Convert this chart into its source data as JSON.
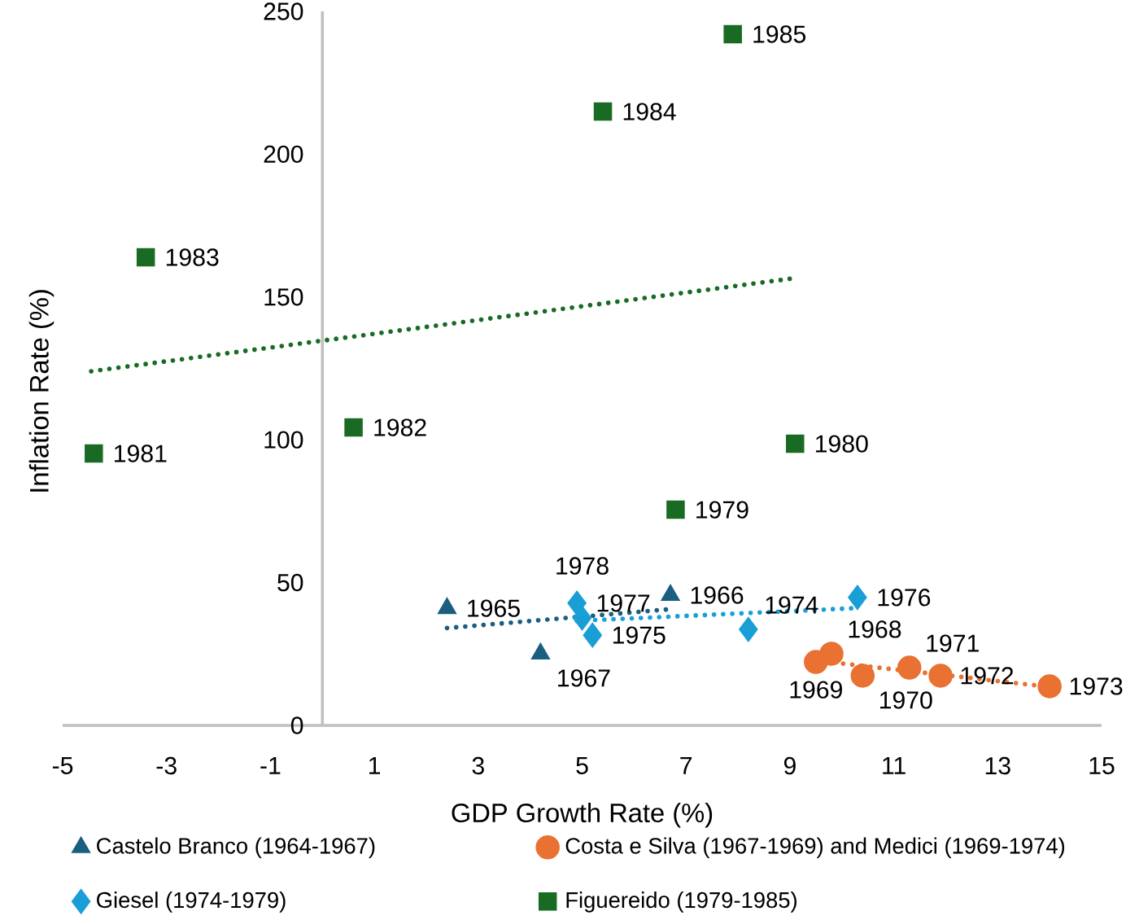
{
  "chart_data": {
    "type": "scatter",
    "xlabel": "GDP Growth Rate (%)",
    "ylabel": "Inflation Rate (%)",
    "xlim": [
      -5,
      15
    ],
    "ylim": [
      0,
      250
    ],
    "xticks": [
      -5,
      -3,
      -1,
      1,
      3,
      5,
      7,
      9,
      11,
      13,
      15
    ],
    "yticks": [
      0,
      50,
      100,
      150,
      200,
      250
    ],
    "legend": "bottom",
    "series": [
      {
        "name": "Castelo Branco (1964-1967)",
        "color": "#1a5e80",
        "marker": "triangle",
        "x": [
          2.4,
          6.7,
          4.2
        ],
        "values": [
          41,
          45.6,
          25.1
        ]
      },
      {
        "name": "Costa e Silva (1967-1969) and Medici (1969-1974)",
        "color": "#e97132",
        "marker": "circle",
        "x": [
          9.8,
          9.5,
          10.4,
          11.3,
          11.9,
          14.0
        ],
        "values": [
          25.1,
          22.2,
          17.4,
          20.2,
          17.4,
          13.7
        ]
      },
      {
        "name": "Giesel (1974-1979)",
        "color": "#199fd6",
        "marker": "diamond",
        "x": [
          8.2,
          5.2,
          10.3,
          4.9,
          5.0
        ],
        "values": [
          33.6,
          31.6,
          44.8,
          42.8,
          37.6
        ]
      },
      {
        "name": "Figuereido (1979-1985)",
        "color": "#196b24",
        "marker": "square",
        "x": [
          6.8,
          9.1,
          -4.4,
          0.6,
          -3.4,
          5.4,
          7.9
        ],
        "values": [
          75.5,
          98.6,
          95.2,
          104.3,
          163.9,
          214.9,
          242
        ]
      },
      {
        "type": "line",
        "color": "#1a5e80",
        "line_style": "dotted",
        "x": [
          2.4,
          6.7
        ],
        "values": [
          34.1,
          40.7
        ]
      },
      {
        "type": "line",
        "color": "#e97132",
        "line_style": "dotted",
        "x": [
          9.5,
          14.0
        ],
        "values": [
          22.7,
          13.5
        ]
      },
      {
        "type": "line",
        "color": "#199fd6",
        "line_style": "dotted",
        "x": [
          4.9,
          10.3
        ],
        "values": [
          36.6,
          41.1
        ]
      },
      {
        "type": "line",
        "color": "#196b24",
        "line_style": "dotted",
        "x": [
          -4.45,
          9.05
        ],
        "values": [
          124,
          156.5
        ]
      }
    ],
    "annotations": [
      {
        "text": "1965",
        "x": 2.4,
        "y": 41
      },
      {
        "text": "1966",
        "x": 6.7,
        "y": 45.6
      },
      {
        "text": "1967",
        "x": 4.2,
        "y": 25.1
      },
      {
        "text": "1968",
        "x": 9.8,
        "y": 25.1
      },
      {
        "text": "1969",
        "x": 9.5,
        "y": 22.2
      },
      {
        "text": "1970",
        "x": 10.4,
        "y": 17.4
      },
      {
        "text": "1971",
        "x": 11.3,
        "y": 20.2
      },
      {
        "text": "1972",
        "x": 11.9,
        "y": 17.4
      },
      {
        "text": "1973",
        "x": 14.0,
        "y": 13.7
      },
      {
        "text": "1974",
        "x": 8.2,
        "y": 33.6
      },
      {
        "text": "1975",
        "x": 5.2,
        "y": 31.6
      },
      {
        "text": "1976",
        "x": 10.3,
        "y": 44.8
      },
      {
        "text": "1977",
        "x": 4.9,
        "y": 42.8
      },
      {
        "text": "1978",
        "x": 5.0,
        "y": 37.6
      },
      {
        "text": "1979",
        "x": 6.8,
        "y": 75.5
      },
      {
        "text": "1980",
        "x": 9.1,
        "y": 98.6
      },
      {
        "text": "1981",
        "x": -4.4,
        "y": 95.2
      },
      {
        "text": "1982",
        "x": 0.6,
        "y": 104.3
      },
      {
        "text": "1983",
        "x": -3.4,
        "y": 163.9
      },
      {
        "text": "1984",
        "x": 5.4,
        "y": 214.9
      },
      {
        "text": "1985",
        "x": 7.9,
        "y": 242
      }
    ]
  }
}
